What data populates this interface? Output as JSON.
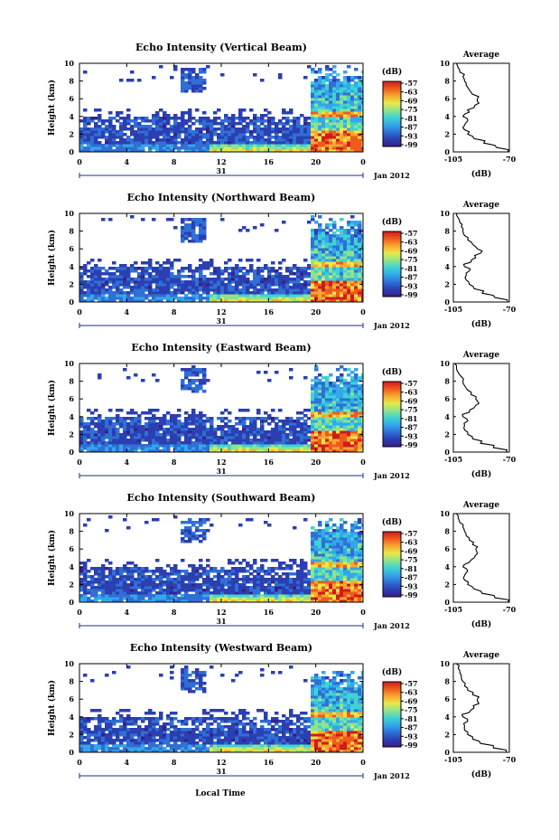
{
  "figure": {
    "date_label": "Jan 2012",
    "day_label": "31",
    "xlabel_bottom": "Local Time",
    "colorbar_unit": "(dB)"
  },
  "colors": {
    "scale": [
      "#3a1e8a",
      "#2b3fb0",
      "#2f6fd6",
      "#33a7ea",
      "#3fd3d2",
      "#8fe38a",
      "#e8e84a",
      "#f7a830",
      "#ef5a1e",
      "#cf1b1b"
    ]
  },
  "chart_data": [
    {
      "type": "heatmap",
      "title": "Echo Intensity (Vertical Beam)",
      "ylabel": "Height (km)",
      "x_ticks": [
        "0",
        "4",
        "8",
        "12",
        "16",
        "20",
        "0"
      ],
      "y_ticks": [
        "0",
        "2",
        "4",
        "6",
        "8",
        "10"
      ],
      "xlim": [
        0,
        24
      ],
      "ylim": [
        0,
        10
      ],
      "colorbar": {
        "unit": "(dB)",
        "ticks": [
          "-57",
          "-63",
          "-69",
          "-75",
          "-81",
          "-87",
          "-93",
          "-99"
        ]
      },
      "layers": [
        [
          0,
          4.2,
          0,
          24
        ],
        [
          0,
          1.0,
          12,
          20
        ],
        [
          0,
          10,
          19.5,
          24
        ]
      ],
      "profile": {
        "title": "Average",
        "xlabel": "(dB)",
        "x_ticks": [
          "-105",
          "-70"
        ],
        "xlim": [
          -105,
          -70
        ],
        "ylim": [
          0,
          10
        ],
        "heights": [
          0,
          0.5,
          1,
          1.5,
          2,
          2.5,
          3,
          3.5,
          4,
          4.5,
          5,
          5.5,
          6,
          6.5,
          7,
          7.5,
          8,
          8.5,
          9,
          9.5,
          10
        ],
        "values": [
          -71,
          -78,
          -86,
          -92,
          -96,
          -98,
          -98,
          -96,
          -99,
          -95,
          -92,
          -89,
          -90,
          -93,
          -95,
          -97,
          -98,
          -99,
          -101,
          -102,
          -103
        ]
      }
    },
    {
      "type": "heatmap",
      "title": "Echo Intensity (Northward Beam)",
      "ylabel": "Height (km)",
      "x_ticks": [
        "0",
        "4",
        "8",
        "12",
        "16",
        "20",
        "0"
      ],
      "y_ticks": [
        "0",
        "2",
        "4",
        "6",
        "8",
        "10"
      ],
      "xlim": [
        0,
        24
      ],
      "ylim": [
        0,
        10
      ],
      "colorbar": {
        "unit": "(dB)",
        "ticks": [
          "-57",
          "-63",
          "-69",
          "-75",
          "-81",
          "-87",
          "-93",
          "-99"
        ]
      },
      "layers": [
        [
          0,
          4.2,
          0,
          24
        ],
        [
          0,
          1.0,
          12,
          20
        ],
        [
          0,
          10,
          19.5,
          24
        ]
      ],
      "profile": {
        "title": "Average",
        "xlabel": "(dB)",
        "x_ticks": [
          "-105",
          "-70"
        ],
        "xlim": [
          -105,
          -70
        ],
        "ylim": [
          0,
          10
        ],
        "heights": [
          0,
          0.5,
          1,
          1.5,
          2,
          2.5,
          3,
          3.5,
          4,
          4.5,
          5,
          5.5,
          6,
          6.5,
          7,
          7.5,
          8,
          8.5,
          9,
          9.5,
          10
        ],
        "values": [
          -71,
          -79,
          -87,
          -92,
          -95,
          -97,
          -97,
          -95,
          -98,
          -94,
          -91,
          -88,
          -90,
          -93,
          -96,
          -98,
          -99,
          -100,
          -101,
          -102,
          -103
        ]
      }
    },
    {
      "type": "heatmap",
      "title": "Echo Intensity (Eastward Beam)",
      "ylabel": "Height (km)",
      "x_ticks": [
        "0",
        "4",
        "8",
        "12",
        "16",
        "20",
        "0"
      ],
      "y_ticks": [
        "0",
        "2",
        "4",
        "6",
        "8",
        "10"
      ],
      "xlim": [
        0,
        24
      ],
      "ylim": [
        0,
        10
      ],
      "colorbar": {
        "unit": "(dB)",
        "ticks": [
          "-57",
          "-63",
          "-69",
          "-75",
          "-81",
          "-87",
          "-93",
          "-99"
        ]
      },
      "layers": [
        [
          0,
          4.2,
          0,
          24
        ],
        [
          0,
          1.0,
          12,
          20
        ],
        [
          0,
          10,
          19.5,
          24
        ]
      ],
      "profile": {
        "title": "Average",
        "xlabel": "(dB)",
        "x_ticks": [
          "-105",
          "-70"
        ],
        "xlim": [
          -105,
          -70
        ],
        "ylim": [
          0,
          10
        ],
        "heights": [
          0,
          0.5,
          1,
          1.5,
          2,
          2.5,
          3,
          3.5,
          4,
          4.5,
          5,
          5.5,
          6,
          6.5,
          7,
          7.5,
          8,
          8.5,
          9,
          9.5,
          10
        ],
        "values": [
          -72,
          -80,
          -88,
          -93,
          -96,
          -98,
          -98,
          -96,
          -99,
          -95,
          -92,
          -89,
          -91,
          -94,
          -96,
          -98,
          -99,
          -100,
          -102,
          -103,
          -104
        ]
      }
    },
    {
      "type": "heatmap",
      "title": "Echo Intensity (Southward Beam)",
      "ylabel": "Height (km)",
      "x_ticks": [
        "0",
        "4",
        "8",
        "12",
        "16",
        "20",
        "0"
      ],
      "y_ticks": [
        "0",
        "2",
        "4",
        "6",
        "8",
        "10"
      ],
      "xlim": [
        0,
        24
      ],
      "ylim": [
        0,
        10
      ],
      "colorbar": {
        "unit": "(dB)",
        "ticks": [
          "-57",
          "-63",
          "-69",
          "-75",
          "-81",
          "-87",
          "-93",
          "-99"
        ]
      },
      "layers": [
        [
          0,
          4.2,
          0,
          24
        ],
        [
          0,
          1.0,
          12,
          20
        ],
        [
          0,
          10,
          19.5,
          24
        ]
      ],
      "profile": {
        "title": "Average",
        "xlabel": "(dB)",
        "x_ticks": [
          "-105",
          "-70"
        ],
        "xlim": [
          -105,
          -70
        ],
        "ylim": [
          0,
          10
        ],
        "heights": [
          0,
          0.5,
          1,
          1.5,
          2,
          2.5,
          3,
          3.5,
          4,
          4.5,
          5,
          5.5,
          6,
          6.5,
          7,
          7.5,
          8,
          8.5,
          9,
          9.5,
          10
        ],
        "values": [
          -71,
          -79,
          -87,
          -92,
          -96,
          -98,
          -98,
          -96,
          -99,
          -95,
          -92,
          -90,
          -91,
          -93,
          -95,
          -97,
          -98,
          -99,
          -101,
          -102,
          -103
        ]
      }
    },
    {
      "type": "heatmap",
      "title": "Echo Intensity (Westward Beam)",
      "ylabel": "Height (km)",
      "x_ticks": [
        "0",
        "4",
        "8",
        "12",
        "16",
        "20",
        "0"
      ],
      "y_ticks": [
        "0",
        "2",
        "4",
        "6",
        "8",
        "10"
      ],
      "xlim": [
        0,
        24
      ],
      "ylim": [
        0,
        10
      ],
      "colorbar": {
        "unit": "(dB)",
        "ticks": [
          "-57",
          "-63",
          "-69",
          "-75",
          "-81",
          "-87",
          "-93",
          "-99"
        ]
      },
      "layers": [
        [
          0,
          4.2,
          0,
          24
        ],
        [
          0,
          1.0,
          12,
          20
        ],
        [
          0,
          10,
          19.5,
          24
        ]
      ],
      "profile": {
        "title": "Average",
        "xlabel": "(dB)",
        "x_ticks": [
          "-105",
          "-70"
        ],
        "xlim": [
          -105,
          -70
        ],
        "ylim": [
          0,
          10
        ],
        "heights": [
          0,
          0.5,
          1,
          1.5,
          2,
          2.5,
          3,
          3.5,
          4,
          4.5,
          5,
          5.5,
          6,
          6.5,
          7,
          7.5,
          8,
          8.5,
          9,
          9.5,
          10
        ],
        "values": [
          -72,
          -80,
          -88,
          -93,
          -96,
          -98,
          -98,
          -96,
          -99,
          -95,
          -92,
          -89,
          -90,
          -93,
          -96,
          -98,
          -99,
          -100,
          -101,
          -102,
          -103
        ]
      }
    }
  ]
}
